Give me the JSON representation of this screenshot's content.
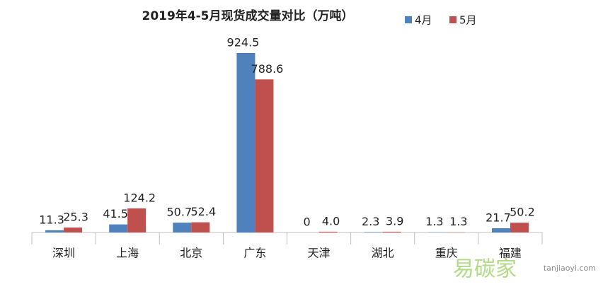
{
  "chart_data": {
    "type": "bar",
    "title": "2019年4-5月现货成交量对比（万吨）",
    "categories": [
      "深圳",
      "上海",
      "北京",
      "广东",
      "天津",
      "湖北",
      "重庆",
      "福建"
    ],
    "series": [
      {
        "name": "4月",
        "color": "#4f81bd",
        "values": [
          11.3,
          41.5,
          50.7,
          924.5,
          0,
          2.3,
          1.3,
          21.7
        ]
      },
      {
        "name": "5月",
        "color": "#c0504d",
        "values": [
          25.3,
          124.2,
          52.4,
          788.6,
          4.0,
          3.9,
          1.3,
          50.2
        ],
        "value_labels": [
          "25.3",
          "124.2",
          "52.4",
          "788.6",
          "4.0",
          "3.9",
          "1.3",
          "50.2"
        ]
      }
    ],
    "legend": "top-right",
    "watermark": {
      "brand": "易碳家",
      "site": "tanjiaoyi.com"
    }
  }
}
